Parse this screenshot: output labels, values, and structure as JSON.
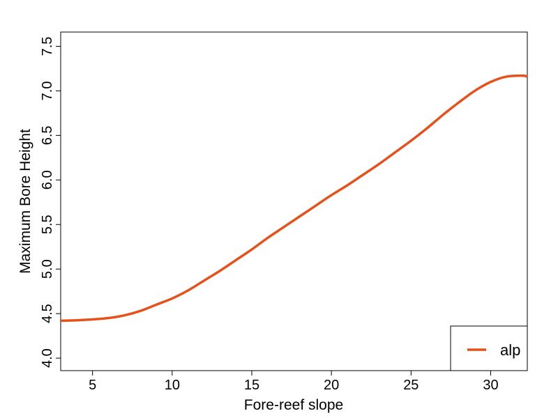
{
  "chart_data": {
    "type": "line",
    "title": "",
    "xlabel": "Fore-reef slope",
    "ylabel": "Maximum Bore Height",
    "xlim": [
      3,
      32.3
    ],
    "ylim": [
      3.86,
      7.66
    ],
    "x_ticks": [
      {
        "value": 5,
        "label": "5"
      },
      {
        "value": 10,
        "label": "10"
      },
      {
        "value": 15,
        "label": "15"
      },
      {
        "value": 20,
        "label": "20"
      },
      {
        "value": 25,
        "label": "25"
      },
      {
        "value": 30,
        "label": "30"
      }
    ],
    "y_ticks": [
      {
        "value": 4.0,
        "label": "4.0"
      },
      {
        "value": 4.5,
        "label": "4.5"
      },
      {
        "value": 5.0,
        "label": "5.0"
      },
      {
        "value": 5.5,
        "label": "5.5"
      },
      {
        "value": 6.0,
        "label": "6.0"
      },
      {
        "value": 6.5,
        "label": "6.5"
      },
      {
        "value": 7.0,
        "label": "7.0"
      },
      {
        "value": 7.5,
        "label": "7.5"
      }
    ],
    "grid": false,
    "legend_position": "bottom-right",
    "series": [
      {
        "name": "alp",
        "color": "#e8501a",
        "x": [
          3,
          4,
          5,
          6,
          7,
          8,
          9,
          10,
          11,
          12,
          13,
          14,
          15,
          16,
          17,
          18,
          19,
          20,
          21,
          22,
          23,
          24,
          25,
          26,
          27,
          28,
          29,
          30,
          31,
          32,
          32.3
        ],
        "y": [
          4.42,
          4.425,
          4.435,
          4.45,
          4.48,
          4.53,
          4.6,
          4.67,
          4.76,
          4.87,
          4.98,
          5.1,
          5.22,
          5.35,
          5.47,
          5.59,
          5.71,
          5.83,
          5.94,
          6.06,
          6.18,
          6.31,
          6.44,
          6.58,
          6.73,
          6.87,
          7.0,
          7.1,
          7.16,
          7.17,
          7.16
        ]
      }
    ]
  }
}
